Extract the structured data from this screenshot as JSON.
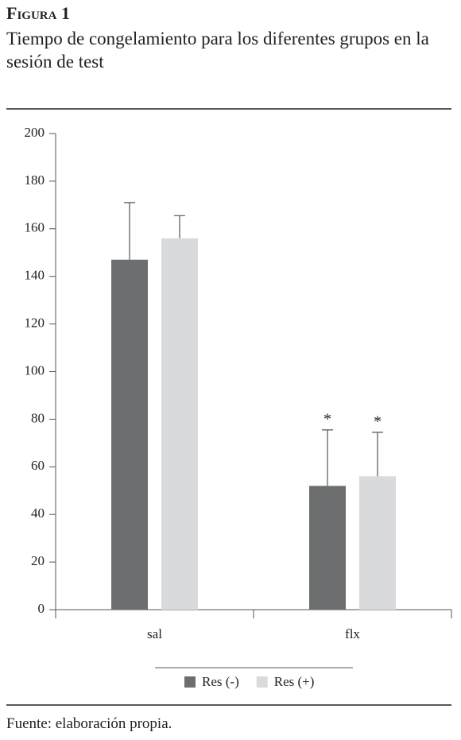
{
  "chart_data": {
    "type": "bar",
    "title": "Figura 1",
    "subtitle": "Tiempo de congelamiento para los diferentes grupos en la sesión de test",
    "source": "Fuente: elaboración propia.",
    "categories": [
      "sal",
      "flx"
    ],
    "series": [
      {
        "name": "Res (-)",
        "color": "#6d6e70",
        "values": [
          147,
          52
        ],
        "errors": [
          24,
          23.5
        ],
        "annotations": [
          null,
          "*"
        ]
      },
      {
        "name": "Res (+)",
        "color": "#d9dadb",
        "values": [
          156,
          56
        ],
        "errors": [
          9.5,
          18.5
        ],
        "annotations": [
          null,
          "*"
        ]
      }
    ],
    "ylim": [
      0,
      200
    ],
    "yticks": [
      0,
      20,
      40,
      60,
      80,
      100,
      120,
      140,
      160,
      180,
      200
    ],
    "grid": false,
    "legend": "bottom"
  }
}
